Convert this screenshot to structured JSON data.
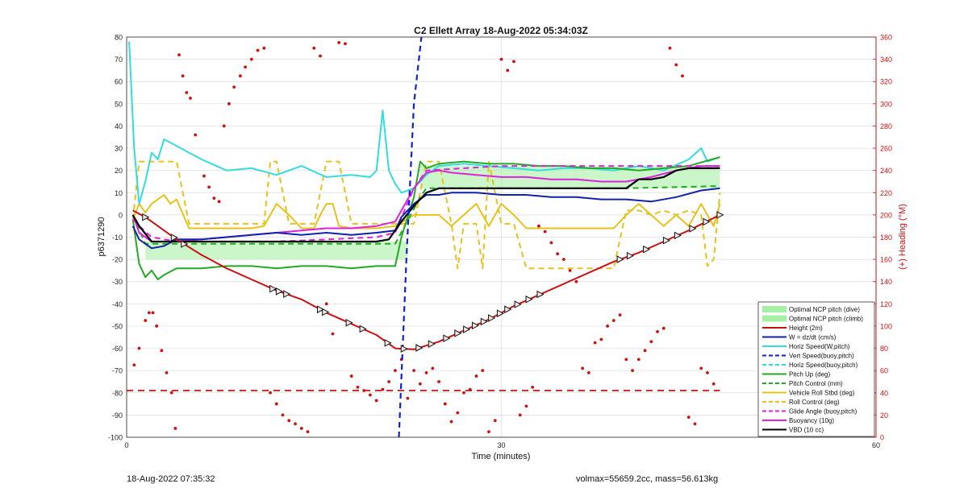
{
  "footer": {
    "left_text": "18-Aug-2022 07:35:32",
    "right_text": "volmax=55659.2cc, mass=56.613kg"
  },
  "chart_data": {
    "type": "line",
    "title": "C2 Ellett Array 18-Aug-2022 05:34:03Z",
    "xlabel": "Time (minutes)",
    "ylabel_left": "p6371290",
    "ylabel_right": "(+) Heading (°M)",
    "xlim": [
      0,
      60
    ],
    "ylim_left": [
      -100,
      80
    ],
    "ylim_right": [
      0,
      360
    ],
    "xticks": [
      0,
      30,
      60
    ],
    "yticks_left": [
      80,
      70,
      60,
      50,
      40,
      30,
      20,
      10,
      0,
      -10,
      -20,
      -30,
      -40,
      -50,
      -60,
      -70,
      -80,
      -90,
      -100
    ],
    "yticks_right": [
      360,
      340,
      320,
      300,
      280,
      260,
      240,
      220,
      200,
      180,
      160,
      140,
      120,
      100,
      80,
      60,
      40,
      20,
      0
    ],
    "grid": true,
    "legend_position": "bottom-right",
    "legend": [
      "Optimal NCP pitch (dive)",
      "Optimal NCP pitch (climb)",
      "Height (2m)",
      "W = dz/dt (cm/s)",
      "Horiz Speed(W,pitch)",
      "Vert Speed(buoy,pitch)",
      "Horiz Speed(buoy,pitch)",
      "Pitch Up (deg)",
      "Pitch Control (mm)",
      "Vehicle Roll Stbd (deg)",
      "Roll Control (deg)",
      "Glide Angle (buoy,pitch)",
      "Buoyancy (10g)",
      "VBD (10 cc)"
    ],
    "colors": {
      "height": "#cc1111",
      "w": "#1122aa",
      "horiz": "#33dddd",
      "vert_speed": "#1122cc",
      "pitch": "#22aa22",
      "roll": "#e6c21a",
      "buoyancy": "#dd22dd",
      "vbd": "#000000",
      "ncp": "#a6f0a6",
      "heading": "#cc1111"
    },
    "series": [
      {
        "name": "Height (2m)",
        "x": [
          0.5,
          1.5,
          4,
          6,
          8,
          10,
          12,
          14,
          16,
          18,
          20,
          21.5,
          23,
          25,
          27,
          29,
          31,
          33,
          35,
          37,
          39,
          41,
          43,
          45,
          47.5
        ],
        "y": [
          2,
          -1,
          -11,
          -18,
          -24,
          -29,
          -34,
          -38,
          -44,
          -49,
          -54,
          -60,
          -60.5,
          -57,
          -52,
          -47,
          -41,
          -36,
          -31,
          -26,
          -21,
          -17,
          -12,
          -7,
          0
        ]
      },
      {
        "name": "W = dz/dt (cm/s)",
        "x": [
          0.5,
          1,
          2,
          3,
          4,
          6,
          8,
          10,
          12,
          14,
          16,
          18,
          20,
          21.5,
          22,
          23,
          24,
          25,
          26,
          28,
          30,
          32,
          34,
          36,
          38,
          40,
          42,
          44,
          46,
          47.5
        ],
        "y": [
          -5,
          -11,
          -15,
          -14,
          -11,
          -11,
          -10,
          -9,
          -8,
          -9,
          -8,
          -9,
          -8,
          -7,
          -1,
          5,
          9,
          9,
          10,
          10,
          9,
          9,
          8,
          8,
          7,
          7,
          6,
          8,
          11,
          12
        ]
      },
      {
        "name": "Horiz Speed(W,pitch)",
        "x": [
          0.2,
          0.6,
          1,
          1.5,
          2,
          2.5,
          3,
          4,
          6,
          8,
          10,
          12,
          14,
          16,
          18,
          19.5,
          20,
          20.5,
          21,
          21.5,
          22,
          23,
          24,
          25,
          27,
          29,
          31,
          33,
          35,
          37,
          39,
          41,
          43,
          45,
          46,
          46.5,
          47.5
        ],
        "y": [
          78,
          30,
          5,
          15,
          28,
          25,
          34,
          31,
          25,
          20,
          21,
          18,
          22,
          17,
          18,
          17,
          20,
          47,
          20,
          14,
          10,
          12,
          18,
          22,
          23,
          22,
          21,
          20,
          21,
          21,
          20,
          22,
          20,
          25,
          30,
          24,
          26
        ]
      },
      {
        "name": "Vert Speed(buoy,pitch)",
        "x": [
          21.8,
          22.4,
          23.0,
          23.6
        ],
        "y": [
          -100,
          -20,
          50,
          80
        ]
      },
      {
        "name": "Pitch Up (deg)",
        "x": [
          0.5,
          1,
          1.5,
          2,
          2.5,
          3,
          4,
          6,
          8,
          10,
          12,
          14,
          16,
          18,
          20,
          21.5,
          22,
          23,
          23.5,
          24,
          25,
          27,
          29,
          31,
          33,
          35,
          37,
          39,
          41,
          43,
          45,
          47.5
        ],
        "y": [
          -2,
          -22,
          -28,
          -25,
          -29,
          -27,
          -24,
          -24,
          -23,
          -23,
          -24,
          -23,
          -23,
          -24,
          -23,
          -23,
          -10,
          8,
          24,
          21,
          23,
          24,
          23,
          23,
          22,
          22,
          21,
          21,
          20,
          21,
          22,
          26
        ]
      },
      {
        "name": "Pitch Control (mm)",
        "x": [
          0.5,
          1.5,
          3,
          10,
          20,
          21.5,
          23.5,
          24,
          30,
          40,
          47.5
        ],
        "y": [
          0,
          -13,
          -13,
          -13,
          -13,
          -13,
          8,
          12,
          12,
          12,
          13
        ]
      },
      {
        "name": "Vehicle Roll Stbd (deg)",
        "x": [
          0.5,
          1,
          1.5,
          2,
          2.5,
          3,
          3.5,
          4,
          5,
          8,
          10,
          11,
          11.5,
          12,
          13,
          14,
          15,
          15.5,
          16,
          16.5,
          17,
          18,
          20,
          21.5,
          23,
          25,
          26,
          27,
          28,
          29,
          30,
          31,
          32,
          33,
          35,
          37,
          39,
          40,
          41,
          43,
          44,
          45,
          46,
          47,
          47.5
        ],
        "y": [
          -2,
          5,
          1,
          5,
          7,
          9,
          5,
          7,
          -6,
          -6,
          -6,
          -5,
          0,
          5,
          0,
          -6,
          -6,
          0,
          5,
          5,
          -5,
          -6,
          -6,
          -5,
          0,
          0,
          -5,
          0,
          5,
          -5,
          5,
          0,
          -6,
          -6,
          -6,
          -6,
          -6,
          0,
          5,
          -5,
          0,
          -5,
          5,
          -5,
          5
        ]
      },
      {
        "name": "Roll Control (deg)",
        "x": [
          0.5,
          1,
          1.5,
          2,
          3,
          4,
          5,
          6,
          10,
          11,
          11.5,
          12,
          13,
          14,
          15,
          16,
          16.5,
          17,
          18,
          20,
          21.5,
          23,
          24,
          25,
          26,
          26.5,
          27,
          28,
          28.5,
          29,
          30,
          31,
          32,
          33,
          35,
          37,
          39,
          40,
          41,
          42,
          43,
          44,
          45,
          46,
          46.5,
          47,
          47.5
        ],
        "y": [
          -2,
          24,
          24,
          24,
          24,
          24,
          -4,
          -4,
          -4,
          -4,
          24,
          24,
          -4,
          -4,
          -4,
          24,
          24,
          24,
          -4,
          -4,
          -4,
          -4,
          24,
          24,
          -4,
          -24,
          -4,
          -4,
          -24,
          24,
          -4,
          -4,
          -24,
          -24,
          -24,
          -24,
          -24,
          2,
          2,
          0,
          2,
          0,
          2,
          0,
          -23,
          -20,
          10
        ]
      },
      {
        "name": "Glide Angle (buoy,pitch)",
        "x": [
          0.5,
          1,
          2,
          4,
          8,
          12,
          16,
          20,
          21.5,
          23,
          24,
          30,
          40,
          47.5
        ],
        "y": [
          -2,
          -5,
          -10,
          -12,
          -12,
          -12,
          -11,
          -10,
          -8,
          12,
          20,
          22,
          22,
          22
        ]
      },
      {
        "name": "Buoyancy (10g)",
        "x": [
          0.5,
          1,
          2,
          4,
          6,
          8,
          10,
          12,
          14,
          16,
          18,
          20,
          21.5,
          23,
          24,
          25,
          26,
          28,
          30,
          32,
          34,
          36,
          38,
          40,
          42,
          44,
          46,
          47.5
        ],
        "y": [
          0,
          -8,
          -12,
          -12,
          -11,
          -10,
          -9,
          -8,
          -7,
          -6,
          -6,
          -5,
          -3,
          12,
          19,
          20,
          19,
          18,
          17,
          17,
          16,
          16,
          15,
          15,
          17,
          20,
          22,
          22
        ]
      },
      {
        "name": "VBD (10 cc)",
        "x": [
          0.5,
          1,
          2,
          3,
          5,
          10,
          15,
          20,
          21,
          22,
          23,
          24,
          25,
          30,
          35,
          40,
          41,
          42,
          43,
          44,
          45,
          46,
          47.5
        ],
        "y": [
          0,
          -5,
          -12,
          -12,
          -12,
          -12,
          -12,
          -12,
          -11,
          -3,
          4,
          10,
          12,
          12,
          12,
          12,
          16,
          16,
          17,
          20,
          21,
          21,
          21
        ]
      }
    ],
    "ncp_bands": [
      {
        "name": "Optimal NCP pitch (dive)",
        "x": [
          1.5,
          22.5
        ],
        "y": [
          -20,
          -12
        ]
      },
      {
        "name": "Optimal NCP pitch (climb)",
        "x": [
          23.5,
          47.5
        ],
        "y": [
          12,
          22
        ]
      }
    ],
    "reference_line": {
      "y": -79
    },
    "height_markers": {
      "x": [
        1.5,
        4,
        6,
        17,
        17.5,
        18,
        22,
        22.5,
        26,
        27,
        31,
        33,
        36.5,
        37,
        38,
        39,
        40,
        41,
        42,
        43,
        44,
        45,
        46,
        47,
        48,
        49,
        51,
        52,
        54,
        57,
        59,
        61
      ],
      "note": "markers drawn on Height series"
    },
    "heading_points": {
      "x": [
        0.6,
        1,
        1.5,
        1.8,
        2.1,
        2.4,
        2.8,
        3.2,
        3.6,
        3.9,
        4.2,
        4.5,
        4.8,
        5.1,
        5.5,
        6.2,
        6.6,
        7,
        7.4,
        7.8,
        8.2,
        8.6,
        9.1,
        9.5,
        10,
        10.5,
        11,
        11.5,
        12,
        12.5,
        13,
        13.5,
        14,
        14.5,
        15,
        15.5,
        16,
        16.5,
        17,
        17.5,
        18,
        18.5,
        19,
        19.5,
        20,
        20.5,
        21,
        21.5,
        22,
        22.5,
        23,
        23.5,
        24,
        24.5,
        25,
        25.5,
        26,
        26.5,
        27,
        27.5,
        28,
        28.5,
        29,
        29.5,
        30,
        30.5,
        31,
        31.5,
        32,
        32.5,
        33,
        33.5,
        34,
        34.5,
        35,
        35.5,
        36,
        36.5,
        37,
        37.5,
        38,
        38.5,
        39,
        39.5,
        40,
        40.5,
        41,
        41.5,
        42,
        42.5,
        43,
        43.5,
        44,
        44.5,
        45,
        45.5,
        46,
        46.5,
        47
      ],
      "y": [
        65,
        80,
        105,
        112,
        112,
        100,
        78,
        58,
        40,
        8,
        344,
        325,
        310,
        305,
        272,
        235,
        225,
        215,
        212,
        280,
        300,
        315,
        325,
        333,
        340,
        348,
        350,
        40,
        30,
        20,
        15,
        12,
        8,
        5,
        350,
        343,
        120,
        93,
        355,
        354,
        55,
        45,
        42,
        38,
        33,
        43,
        50,
        60,
        70,
        35,
        60,
        48,
        58,
        62,
        50,
        30,
        14,
        22,
        40,
        43,
        55,
        60,
        5,
        15,
        340,
        330,
        338,
        20,
        28,
        45,
        190,
        185,
        175,
        165,
        160,
        150,
        140,
        62,
        58,
        85,
        88,
        100,
        105,
        110,
        70,
        60,
        70,
        78,
        86,
        95,
        98,
        350,
        335,
        325,
        18,
        12,
        62,
        58,
        48
      ]
    }
  }
}
